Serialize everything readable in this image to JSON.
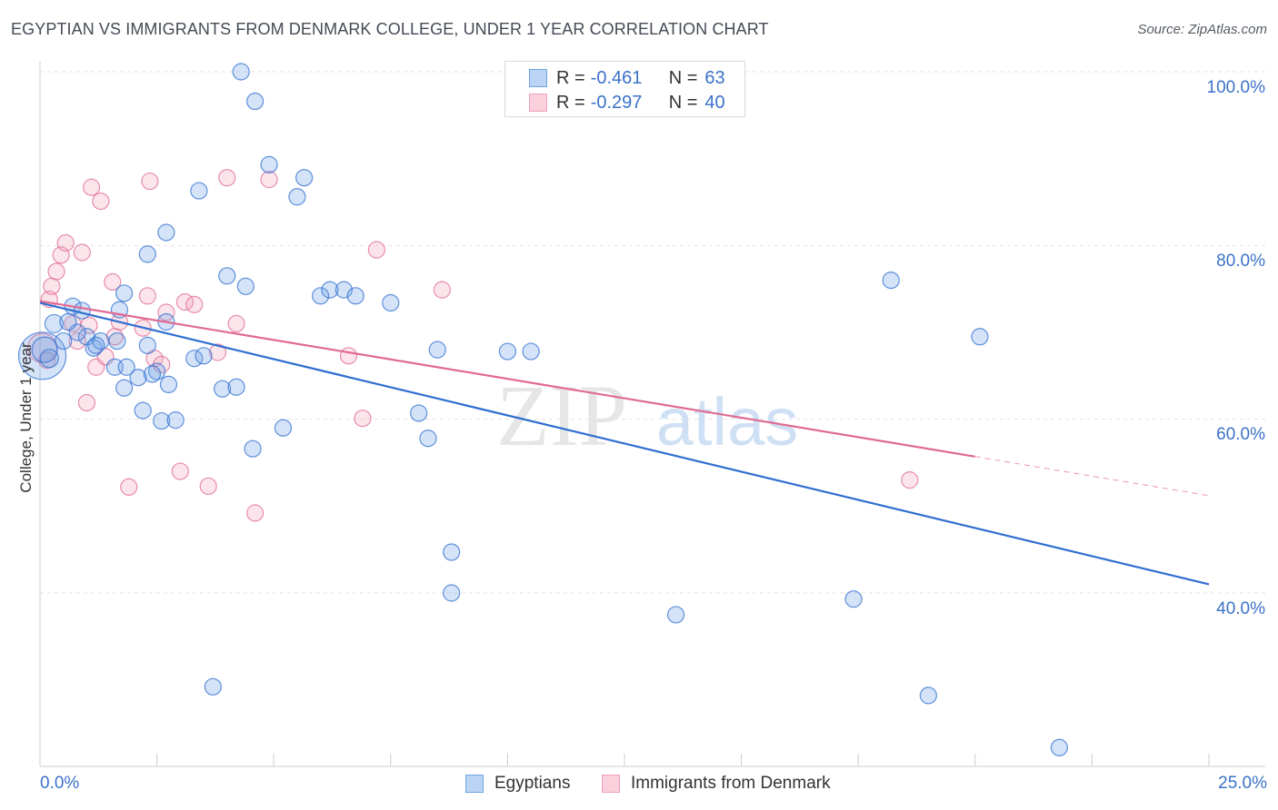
{
  "title": "EGYPTIAN VS IMMIGRANTS FROM DENMARK COLLEGE, UNDER 1 YEAR CORRELATION CHART",
  "source": "Source: ZipAtlas.com",
  "watermark": {
    "zip": "ZIP",
    "atlas": "atlas"
  },
  "colors": {
    "blue": "#6fa3e6",
    "blue_line": "#2f6fd1",
    "pink": "#f0a0b8",
    "pink_line": "#e06a92",
    "axis_label": "#3b72c8"
  },
  "legend_top": [
    {
      "r_label": "R = ",
      "r_value": "-0.461",
      "n_label": "N = ",
      "n_value": "63"
    },
    {
      "r_label": "R = ",
      "r_value": "-0.297",
      "n_label": "N = ",
      "n_value": "40"
    }
  ],
  "chart_data": {
    "type": "scatter",
    "title": "EGYPTIAN VS IMMIGRANTS FROM DENMARK COLLEGE, UNDER 1 YEAR CORRELATION CHART",
    "xlabel": "",
    "ylabel": "College, Under 1 year",
    "x_range": [
      0,
      25
    ],
    "y_range": [
      20,
      102
    ],
    "x_tick_labels": [
      "0.0%",
      "25.0%"
    ],
    "y_ticks": [
      40,
      60,
      80,
      100
    ],
    "y_tick_labels": [
      "40.0%",
      "60.0%",
      "80.0%",
      "100.0%"
    ],
    "grid": true,
    "series": [
      {
        "name": "Egyptians",
        "color": "#6fa3e6",
        "r": -0.461,
        "n": 63,
        "trend": {
          "x0": 0,
          "y0": 73.4,
          "x1": 25,
          "y1": 41.0
        },
        "points": [
          [
            0.05,
            67.3,
            26
          ],
          [
            0.1,
            68.0,
            14
          ],
          [
            0.2,
            67.0,
            10
          ],
          [
            0.3,
            71.0,
            10
          ],
          [
            0.5,
            69.0,
            9
          ],
          [
            0.7,
            73.0,
            9
          ],
          [
            0.9,
            72.5,
            9
          ],
          [
            1.0,
            69.5,
            9
          ],
          [
            1.15,
            68.2,
            9
          ],
          [
            1.3,
            69.0,
            9
          ],
          [
            0.8,
            70.0,
            9
          ],
          [
            1.6,
            66.0,
            9
          ],
          [
            1.65,
            69.0,
            9
          ],
          [
            1.8,
            63.6,
            9
          ],
          [
            2.1,
            64.8,
            9
          ],
          [
            1.85,
            66.0,
            9
          ],
          [
            2.2,
            61.0,
            9
          ],
          [
            2.3,
            68.5,
            9
          ],
          [
            2.5,
            65.5,
            9
          ],
          [
            2.6,
            59.8,
            9
          ],
          [
            2.7,
            71.2,
            9
          ],
          [
            2.9,
            59.9,
            9
          ],
          [
            2.75,
            64.0,
            9
          ],
          [
            1.8,
            74.5,
            9
          ],
          [
            2.3,
            79.0,
            9
          ],
          [
            2.7,
            81.5,
            9
          ],
          [
            3.3,
            67.0,
            9
          ],
          [
            3.4,
            86.3,
            9
          ],
          [
            3.5,
            67.3,
            9
          ],
          [
            3.9,
            63.5,
            9
          ],
          [
            4.0,
            76.5,
            9
          ],
          [
            4.2,
            63.7,
            9
          ],
          [
            4.4,
            75.3,
            9
          ],
          [
            4.55,
            56.6,
            9
          ],
          [
            4.3,
            100.0,
            9
          ],
          [
            4.6,
            96.6,
            9
          ],
          [
            4.9,
            89.3,
            9
          ],
          [
            5.2,
            59.0,
            9
          ],
          [
            5.5,
            85.6,
            9
          ],
          [
            5.65,
            87.8,
            9
          ],
          [
            6.0,
            74.2,
            9
          ],
          [
            6.2,
            74.9,
            9
          ],
          [
            6.5,
            74.9,
            9
          ],
          [
            6.75,
            74.2,
            9
          ],
          [
            7.5,
            73.4,
            9
          ],
          [
            8.1,
            60.7,
            9
          ],
          [
            8.3,
            57.8,
            9
          ],
          [
            8.5,
            68.0,
            9
          ],
          [
            8.8,
            44.7,
            9
          ],
          [
            8.8,
            40.0,
            9
          ],
          [
            10.0,
            67.8,
            9
          ],
          [
            10.5,
            67.8,
            9
          ],
          [
            13.6,
            37.5,
            9
          ],
          [
            17.4,
            39.3,
            9
          ],
          [
            18.2,
            76.0,
            9
          ],
          [
            19.0,
            28.2,
            9
          ],
          [
            20.1,
            69.5,
            9
          ],
          [
            21.8,
            22.2,
            9
          ],
          [
            3.7,
            29.2,
            9
          ],
          [
            1.7,
            72.6,
            9
          ],
          [
            1.2,
            68.5,
            9
          ],
          [
            0.6,
            71.2,
            9
          ],
          [
            2.4,
            65.2,
            9
          ]
        ]
      },
      {
        "name": "Immigrants from Denmark",
        "color": "#f0a0b8",
        "r": -0.297,
        "n": 40,
        "trend": {
          "x0": 0,
          "y0": 73.6,
          "x1": 20,
          "y1": 55.7
        },
        "trend_ext": {
          "x0": 20,
          "y0": 55.7,
          "x1": 25,
          "y1": 51.2
        },
        "points": [
          [
            0.05,
            68.2,
            16
          ],
          [
            0.2,
            73.8,
            9
          ],
          [
            0.25,
            75.3,
            9
          ],
          [
            0.35,
            77.0,
            9
          ],
          [
            0.45,
            78.9,
            9
          ],
          [
            0.55,
            80.3,
            9
          ],
          [
            0.7,
            71.0,
            9
          ],
          [
            0.9,
            79.2,
            9
          ],
          [
            0.8,
            69.0,
            9
          ],
          [
            1.0,
            61.9,
            9
          ],
          [
            1.1,
            86.7,
            9
          ],
          [
            1.3,
            85.1,
            9
          ],
          [
            1.2,
            66.0,
            9
          ],
          [
            1.4,
            67.2,
            9
          ],
          [
            1.55,
            75.8,
            9
          ],
          [
            1.6,
            69.5,
            9
          ],
          [
            1.7,
            71.2,
            9
          ],
          [
            1.9,
            52.2,
            9
          ],
          [
            2.2,
            70.5,
            9
          ],
          [
            2.3,
            74.2,
            9
          ],
          [
            2.35,
            87.4,
            9
          ],
          [
            2.45,
            67.0,
            9
          ],
          [
            2.6,
            66.3,
            9
          ],
          [
            2.7,
            72.3,
            9
          ],
          [
            3.0,
            54.0,
            9
          ],
          [
            3.1,
            73.5,
            9
          ],
          [
            3.3,
            73.2,
            9
          ],
          [
            3.6,
            52.3,
            9
          ],
          [
            3.8,
            67.7,
            9
          ],
          [
            4.0,
            87.8,
            9
          ],
          [
            4.2,
            71.0,
            9
          ],
          [
            4.6,
            49.2,
            9
          ],
          [
            4.9,
            87.6,
            9
          ],
          [
            6.6,
            67.3,
            9
          ],
          [
            6.9,
            60.1,
            9
          ],
          [
            7.2,
            79.5,
            9
          ],
          [
            8.6,
            74.9,
            9
          ],
          [
            18.6,
            53.0,
            9
          ],
          [
            0.15,
            66.8,
            9
          ],
          [
            1.05,
            70.8,
            9
          ]
        ]
      }
    ]
  }
}
